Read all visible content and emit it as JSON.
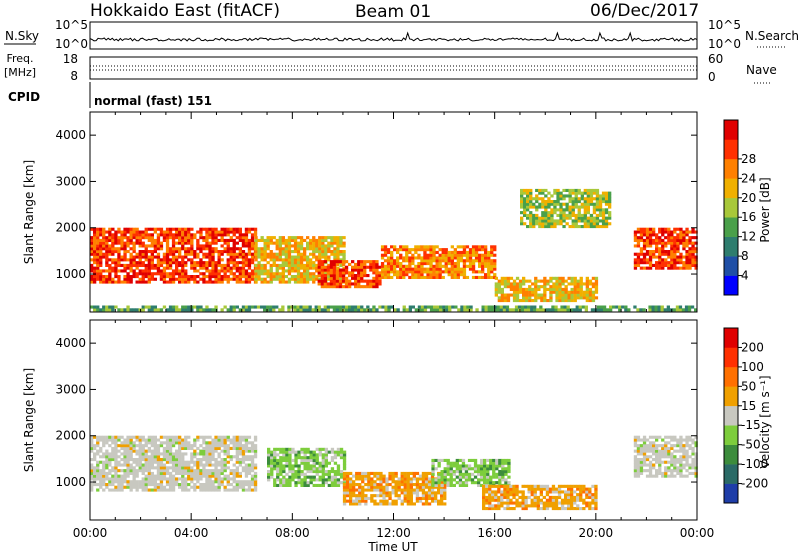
{
  "header": {
    "station": "Hokkaido East (fitACF)",
    "beam": "Beam 01",
    "date": "06/Dec/2017"
  },
  "labels": {
    "nsky": "N.Sky",
    "nsearch": "N.Search",
    "freq": "Freq.",
    "freq_unit": "[MHz]",
    "nave": "Nave",
    "cpid": "CPID",
    "cpid_value": "normal (fast) 151",
    "colors": {
      "dot_line": "#000000"
    }
  },
  "strip_axes": {
    "noise_ticks": [
      "10^5",
      "10^0"
    ],
    "freq_ticks": [
      "18",
      "8"
    ],
    "nave_ticks": [
      "60",
      "0"
    ]
  },
  "chart_data": [
    {
      "type": "heatmap",
      "panel": "power",
      "ylabel": "Slant Range [km]",
      "xlabel": "",
      "ylim": [
        180,
        4500
      ],
      "xlim_hours": [
        0,
        24
      ],
      "y_ticks": [
        "1000",
        "2000",
        "3000",
        "4000"
      ],
      "x_ticks": [
        "00:00",
        "04:00",
        "08:00",
        "12:00",
        "16:00",
        "20:00",
        "00:00"
      ],
      "colorbar": {
        "label": "Power [dB]",
        "ticks": [
          "4",
          "8",
          "12",
          "16",
          "20",
          "24",
          "28"
        ],
        "colors": [
          "#0000ff",
          "#1f4fa6",
          "#2e7d6e",
          "#4aa04a",
          "#a8c83a",
          "#f0b000",
          "#ff8000",
          "#ff3000",
          "#e00000"
        ]
      },
      "regions": [
        {
          "t": [
            0.0,
            6.5
          ],
          "r": [
            800,
            2000
          ],
          "level": 7
        },
        {
          "t": [
            6.5,
            10.0
          ],
          "r": [
            800,
            1800
          ],
          "level": 5
        },
        {
          "t": [
            9.0,
            11.5
          ],
          "r": [
            700,
            1300
          ],
          "level": 7
        },
        {
          "t": [
            11.5,
            16.0
          ],
          "r": [
            900,
            1600
          ],
          "level": 6
        },
        {
          "t": [
            16.0,
            20.0
          ],
          "r": [
            400,
            900
          ],
          "level": 5
        },
        {
          "t": [
            21.5,
            24.0
          ],
          "r": [
            1100,
            2000
          ],
          "level": 7
        },
        {
          "t": [
            17.0,
            20.5
          ],
          "r": [
            2000,
            2800
          ],
          "level": 4
        },
        {
          "t": [
            0.0,
            24.0
          ],
          "r": [
            200,
            300
          ],
          "level": 3
        }
      ]
    },
    {
      "type": "heatmap",
      "panel": "velocity",
      "ylabel": "Slant Range [km]",
      "xlabel": "Time UT",
      "ylim": [
        180,
        4500
      ],
      "xlim_hours": [
        0,
        24
      ],
      "y_ticks": [
        "1000",
        "2000",
        "3000",
        "4000"
      ],
      "x_ticks": [
        "00:00",
        "04:00",
        "08:00",
        "12:00",
        "16:00",
        "20:00",
        "00:00"
      ],
      "colorbar": {
        "label": "Velocity [m s⁻¹]",
        "ticks": [
          "200",
          "100",
          "50",
          "15",
          "-15",
          "-50",
          "-100",
          "-200"
        ],
        "colors": [
          "#1e3da8",
          "#2a6a66",
          "#3c8c3c",
          "#7dcd3c",
          "#c8c8c0",
          "#f0a000",
          "#ff7000",
          "#ff3000",
          "#e00000"
        ]
      },
      "regions": [
        {
          "t": [
            0.0,
            6.5
          ],
          "r": [
            800,
            2000
          ],
          "kind": "grey"
        },
        {
          "t": [
            7.0,
            10.0
          ],
          "r": [
            900,
            1700
          ],
          "kind": "green"
        },
        {
          "t": [
            10.0,
            14.0
          ],
          "r": [
            500,
            1200
          ],
          "kind": "orange"
        },
        {
          "t": [
            13.5,
            16.5
          ],
          "r": [
            900,
            1500
          ],
          "kind": "green"
        },
        {
          "t": [
            15.5,
            20.0
          ],
          "r": [
            400,
            900
          ],
          "kind": "orange"
        },
        {
          "t": [
            21.5,
            24.0
          ],
          "r": [
            1100,
            2000
          ],
          "kind": "grey"
        }
      ]
    }
  ]
}
